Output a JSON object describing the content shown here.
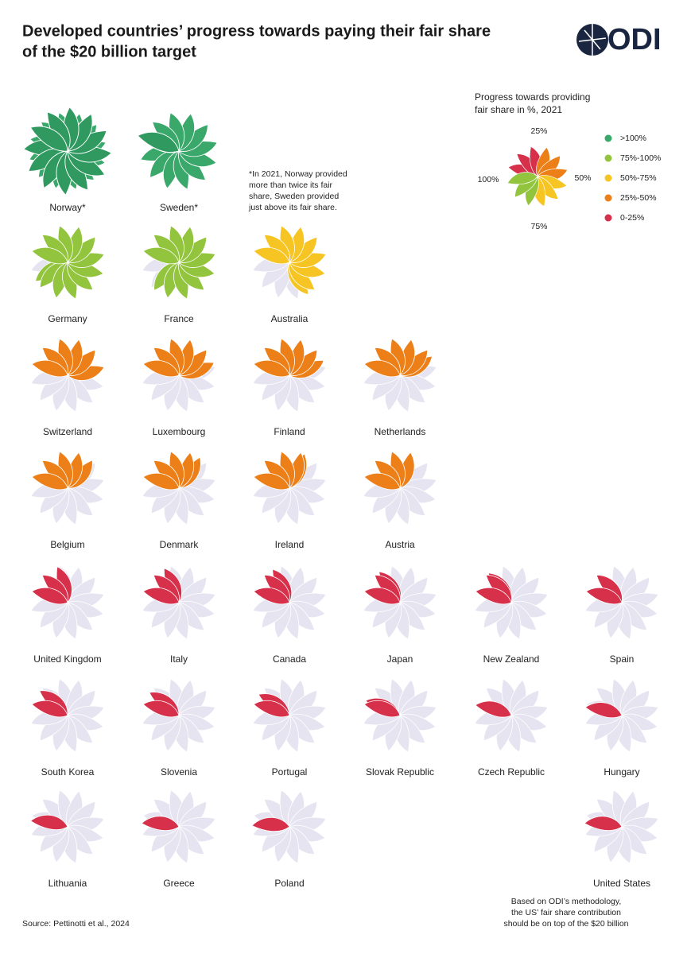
{
  "chart_data": {
    "type": "flower",
    "title": [
      "Developed countries’ progress towards paying their fair share",
      "of the $20 billion target"
    ],
    "logo": "ODI",
    "note": [
      "*In 2021, Norway provided",
      "more than twice its fair",
      "share, Sweden provided",
      "just above its fair share."
    ],
    "legend_title": [
      "Progress towards providing",
      "fair share in %, 2021"
    ],
    "ticks": [
      {
        "value": 25,
        "label": "25%"
      },
      {
        "value": 50,
        "label": "50%"
      },
      {
        "value": 75,
        "label": "75%"
      },
      {
        "value": 100,
        "label": "100%"
      }
    ],
    "legend": [
      {
        "name": ">100%",
        "color": "#3aa86b"
      },
      {
        "name": "75%-100%",
        "color": "#93c43e"
      },
      {
        "name": "50%-75%",
        "color": "#f6c523"
      },
      {
        "name": "25%-50%",
        "color": "#ec7f17"
      },
      {
        "name": "0-25%",
        "color": "#d6304b"
      }
    ],
    "categories": [
      "Norway*",
      "Sweden*",
      "Germany",
      "France",
      "Australia",
      "Switzerland",
      "Luxembourg",
      "Finland",
      "Netherlands",
      "Belgium",
      "Denmark",
      "Ireland",
      "Austria",
      "United Kingdom",
      "Italy",
      "Canada",
      "Japan",
      "New Zealand",
      "Spain",
      "South Korea",
      "Slovenia",
      "Portugal",
      "Slovak Republic",
      "Czech Republic",
      "Hungary",
      "Lithuania",
      "Greece",
      "Poland",
      "United States"
    ],
    "values": [
      210,
      105,
      95,
      90,
      70,
      50,
      48,
      47,
      45,
      40,
      38,
      35,
      33,
      24,
      22,
      21,
      19,
      18,
      17,
      15,
      14,
      13,
      10,
      8,
      7,
      6,
      5,
      4,
      5
    ],
    "us_note": [
      "Based on ODI’s methodology,",
      "the US’ fair share contribution",
      "should be on top of the $20 billion"
    ],
    "source": "Source: Pettinotti et al., 2024"
  }
}
